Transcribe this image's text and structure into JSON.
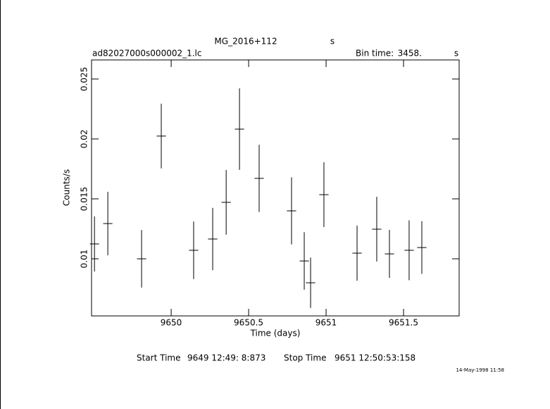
{
  "chart_data": {
    "type": "errorbar",
    "title": "MG_2016+112",
    "title_unit": "s",
    "file_name": "ad82027000s000002_1.lc",
    "bin_time_label": "Bin time:",
    "bin_time": "3458.",
    "bin_time_unit": "s",
    "xlabel": "Time (days)",
    "ylabel": "Counts/s",
    "start_label": "Start Time",
    "start_time": "9649 12:49: 8:873",
    "stop_label": "Stop Time",
    "stop_time": "9651 12:50:53:158",
    "stamp": "14-May-1998 11:58",
    "color": "#000000",
    "x": [
      9649.505,
      9649.591,
      9649.809,
      9649.936,
      9650.145,
      9650.268,
      9650.355,
      9650.441,
      9650.568,
      9650.777,
      9650.859,
      9650.9,
      9650.986,
      9651.2,
      9651.327,
      9651.409,
      9651.536,
      9651.618
    ],
    "values": [
      0.01124,
      0.01294,
      0.01,
      0.02024,
      0.01071,
      0.01165,
      0.01471,
      0.02082,
      0.01671,
      0.014,
      0.00982,
      0.008,
      0.01535,
      0.01047,
      0.01247,
      0.01041,
      0.01071,
      0.01094
    ],
    "yerr": [
      0.0023,
      0.00265,
      0.0024,
      0.0027,
      0.0024,
      0.0026,
      0.0027,
      0.0034,
      0.0028,
      0.0028,
      0.0024,
      0.0021,
      0.0027,
      0.0023,
      0.0027,
      0.002,
      0.0025,
      0.0022
    ],
    "xerr": [
      0.03,
      0.03,
      0.03,
      0.03,
      0.03,
      0.03,
      0.03,
      0.03,
      0.03,
      0.03,
      0.03,
      0.03,
      0.03,
      0.03,
      0.03,
      0.03,
      0.03,
      0.03
    ],
    "xlim": [
      9649.486,
      9651.859
    ],
    "ylim": [
      0.005235,
      0.02659
    ],
    "xticks": [
      9650,
      9650.5,
      9651,
      9651.5
    ],
    "yticks": [
      0.01,
      0.015,
      0.02,
      0.025
    ]
  }
}
